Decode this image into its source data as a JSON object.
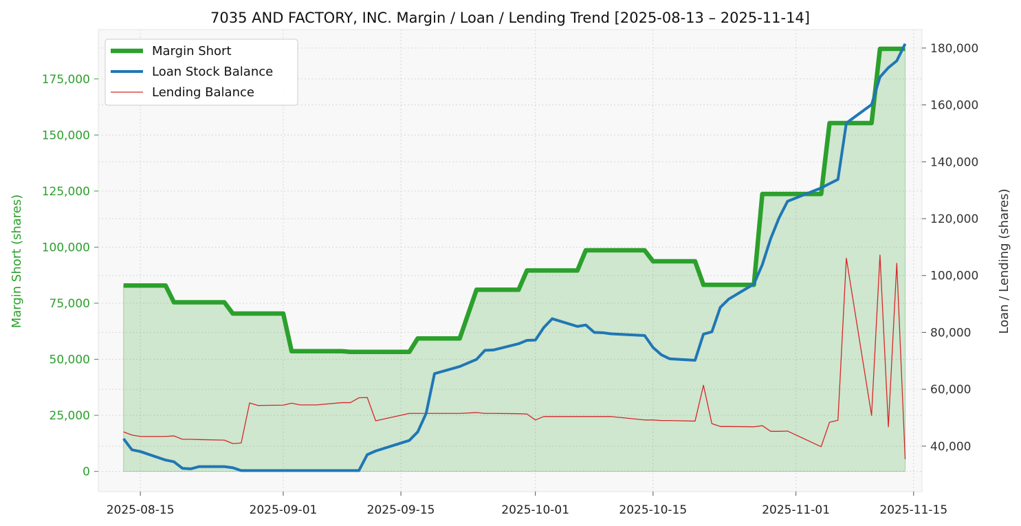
{
  "chart_data": {
    "type": "line",
    "title": "7035 AND FACTORY, INC. Margin / Loan / Lending Trend [2025-08-13 – 2025-11-14]",
    "ylabel_left": "Margin Short (shares)",
    "ylabel_right": "Loan / Lending (shares)",
    "ylim_left": [
      -9000,
      197000
    ],
    "ylim_right": [
      24000,
      186500
    ],
    "xlim": [
      "2025-08-10",
      "2025-11-16"
    ],
    "x_ticks": [
      "2025-08-15",
      "2025-09-01",
      "2025-09-15",
      "2025-10-01",
      "2025-10-15",
      "2025-11-01",
      "2025-11-15"
    ],
    "y_left_ticks": [
      0,
      25000,
      50000,
      75000,
      100000,
      125000,
      150000,
      175000
    ],
    "y_left_tick_labels": [
      "0",
      "25,000",
      "50,000",
      "75,000",
      "100,000",
      "125,000",
      "150,000",
      "175,000"
    ],
    "y_right_ticks": [
      40000,
      60000,
      80000,
      100000,
      120000,
      140000,
      160000,
      180000
    ],
    "y_right_tick_labels": [
      "40,000",
      "60,000",
      "80,000",
      "100,000",
      "120,000",
      "140,000",
      "160,000",
      "180,000"
    ],
    "grid": true,
    "legend_position": "top-left",
    "colors": {
      "margin": "#2ca02c",
      "loan": "#1f77b4",
      "lending": "#d62728",
      "fill": "#2ca02c",
      "plot_bg": "#f8f8f8",
      "left_axis_text": "#2ca02c",
      "right_axis_text": "#333333"
    },
    "series": [
      {
        "name": "Margin Short",
        "axis": "left",
        "x": [
          "2025-08-13",
          "2025-08-14",
          "2025-08-15",
          "2025-08-18",
          "2025-08-19",
          "2025-08-20",
          "2025-08-21",
          "2025-08-22",
          "2025-08-25",
          "2025-08-26",
          "2025-08-27",
          "2025-08-28",
          "2025-08-29",
          "2025-09-01",
          "2025-09-02",
          "2025-09-03",
          "2025-09-04",
          "2025-09-05",
          "2025-09-08",
          "2025-09-09",
          "2025-09-10",
          "2025-09-11",
          "2025-09-12",
          "2025-09-16",
          "2025-09-17",
          "2025-09-18",
          "2025-09-19",
          "2025-09-22",
          "2025-09-24",
          "2025-09-25",
          "2025-09-26",
          "2025-09-29",
          "2025-09-30",
          "2025-10-01",
          "2025-10-02",
          "2025-10-03",
          "2025-10-06",
          "2025-10-07",
          "2025-10-08",
          "2025-10-09",
          "2025-10-10",
          "2025-10-14",
          "2025-10-15",
          "2025-10-16",
          "2025-10-17",
          "2025-10-20",
          "2025-10-21",
          "2025-10-22",
          "2025-10-23",
          "2025-10-24",
          "2025-10-27",
          "2025-10-28",
          "2025-10-29",
          "2025-10-30",
          "2025-10-31",
          "2025-11-04",
          "2025-11-05",
          "2025-11-06",
          "2025-11-07",
          "2025-11-10",
          "2025-11-11",
          "2025-11-12",
          "2025-11-13",
          "2025-11-14"
        ],
        "values": [
          82900,
          82900,
          82900,
          82900,
          75400,
          75400,
          75400,
          75400,
          75400,
          70400,
          70400,
          70400,
          70400,
          70400,
          53600,
          53600,
          53600,
          53600,
          53600,
          53300,
          53300,
          53300,
          53300,
          53300,
          59300,
          59300,
          59300,
          59300,
          81000,
          81000,
          81000,
          81000,
          89600,
          89600,
          89600,
          89600,
          89600,
          98600,
          98600,
          98600,
          98600,
          98600,
          93700,
          93700,
          93700,
          93700,
          83200,
          83200,
          83200,
          83200,
          83200,
          123700,
          123700,
          123700,
          123700,
          123700,
          155300,
          155300,
          155300,
          155300,
          188400,
          188400,
          188400,
          188400
        ]
      },
      {
        "name": "Loan Stock Balance",
        "axis": "right",
        "x": [
          "2025-08-13",
          "2025-08-14",
          "2025-08-15",
          "2025-08-18",
          "2025-08-19",
          "2025-08-20",
          "2025-08-21",
          "2025-08-22",
          "2025-08-25",
          "2025-08-26",
          "2025-08-27",
          "2025-08-28",
          "2025-08-29",
          "2025-09-01",
          "2025-09-02",
          "2025-09-03",
          "2025-09-04",
          "2025-09-05",
          "2025-09-08",
          "2025-09-09",
          "2025-09-10",
          "2025-09-11",
          "2025-09-12",
          "2025-09-16",
          "2025-09-17",
          "2025-09-18",
          "2025-09-19",
          "2025-09-22",
          "2025-09-24",
          "2025-09-25",
          "2025-09-26",
          "2025-09-29",
          "2025-09-30",
          "2025-10-01",
          "2025-10-02",
          "2025-10-03",
          "2025-10-06",
          "2025-10-07",
          "2025-10-08",
          "2025-10-09",
          "2025-10-10",
          "2025-10-14",
          "2025-10-15",
          "2025-10-16",
          "2025-10-17",
          "2025-10-20",
          "2025-10-21",
          "2025-10-22",
          "2025-10-23",
          "2025-10-24",
          "2025-10-27",
          "2025-10-28",
          "2025-10-29",
          "2025-10-30",
          "2025-10-31",
          "2025-11-04",
          "2025-11-05",
          "2025-11-06",
          "2025-11-07",
          "2025-11-10",
          "2025-11-11",
          "2025-11-12",
          "2025-11-13",
          "2025-11-14"
        ],
        "values": [
          42600,
          38700,
          38100,
          35100,
          34500,
          32200,
          32000,
          32800,
          32800,
          32400,
          31400,
          31400,
          31400,
          31400,
          31400,
          31400,
          31400,
          31400,
          31400,
          31400,
          31400,
          37000,
          38300,
          42000,
          45000,
          51500,
          65500,
          68000,
          70500,
          73700,
          73800,
          76000,
          77200,
          77300,
          81700,
          84800,
          82100,
          82600,
          80000,
          79900,
          79500,
          78900,
          74700,
          72100,
          70700,
          70200,
          79400,
          80200,
          88800,
          91700,
          97000,
          103800,
          113000,
          120300,
          126100,
          130800,
          132300,
          133800,
          153600,
          160100,
          169800,
          173100,
          175500,
          181500
        ]
      },
      {
        "name": "Lending Balance",
        "axis": "right",
        "x": [
          "2025-08-13",
          "2025-08-14",
          "2025-08-15",
          "2025-08-18",
          "2025-08-19",
          "2025-08-20",
          "2025-08-21",
          "2025-08-22",
          "2025-08-25",
          "2025-08-26",
          "2025-08-27",
          "2025-08-28",
          "2025-08-29",
          "2025-09-01",
          "2025-09-02",
          "2025-09-03",
          "2025-09-04",
          "2025-09-05",
          "2025-09-08",
          "2025-09-09",
          "2025-09-10",
          "2025-09-11",
          "2025-09-12",
          "2025-09-16",
          "2025-09-17",
          "2025-09-18",
          "2025-09-19",
          "2025-09-22",
          "2025-09-24",
          "2025-09-25",
          "2025-09-26",
          "2025-09-29",
          "2025-09-30",
          "2025-10-01",
          "2025-10-02",
          "2025-10-03",
          "2025-10-06",
          "2025-10-07",
          "2025-10-08",
          "2025-10-09",
          "2025-10-10",
          "2025-10-14",
          "2025-10-15",
          "2025-10-16",
          "2025-10-17",
          "2025-10-20",
          "2025-10-21",
          "2025-10-22",
          "2025-10-23",
          "2025-10-24",
          "2025-10-27",
          "2025-10-28",
          "2025-10-29",
          "2025-10-30",
          "2025-10-31",
          "2025-11-04",
          "2025-11-05",
          "2025-11-06",
          "2025-11-07",
          "2025-11-10",
          "2025-11-11",
          "2025-11-12",
          "2025-11-13",
          "2025-11-14"
        ],
        "values": [
          45000,
          43900,
          43400,
          43400,
          43600,
          42400,
          42400,
          42300,
          42100,
          40900,
          41100,
          55200,
          54300,
          54400,
          55100,
          54500,
          54500,
          54500,
          55300,
          55300,
          57000,
          57100,
          48900,
          51500,
          51500,
          51500,
          51500,
          51500,
          51800,
          51500,
          51500,
          51400,
          51300,
          49200,
          50400,
          50400,
          50400,
          50400,
          50400,
          50400,
          50400,
          49200,
          49200,
          49000,
          49000,
          48800,
          61400,
          47900,
          46900,
          46900,
          46800,
          47200,
          45200,
          45200,
          45300,
          39800,
          48400,
          49100,
          106100,
          50800,
          107200,
          46800,
          104300,
          35400
        ]
      }
    ]
  }
}
